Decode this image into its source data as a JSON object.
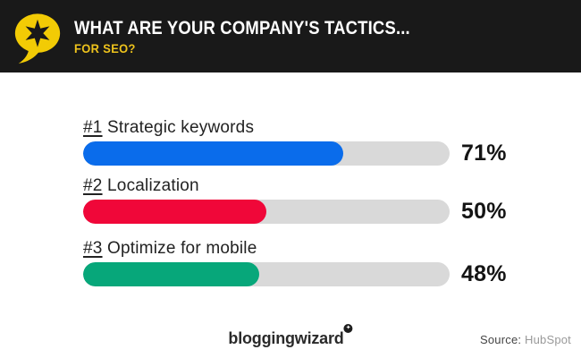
{
  "header": {
    "title": "WHAT ARE YOUR COMPANY'S TACTICS...",
    "subtitle": "FOR SEO?",
    "background_color": "#191919",
    "accent_color": "#eec31c",
    "logo_color": "#f2cb05"
  },
  "chart_data": {
    "type": "bar",
    "orientation": "horizontal",
    "title": "What are your company's tactics for SEO?",
    "ranks": [
      "#1",
      "#2",
      "#3"
    ],
    "categories": [
      "Strategic keywords",
      "Localization",
      "Optimize for mobile"
    ],
    "values": [
      71,
      50,
      48
    ],
    "value_labels": [
      "71%",
      "50%",
      "48%"
    ],
    "bar_colors": [
      "#0a6ceb",
      "#f00739",
      "#07a77a"
    ],
    "track_color": "#d9d9d9",
    "xlim": [
      0,
      100
    ],
    "grid": false,
    "legend": false
  },
  "footer": {
    "brand": "bloggingwizard",
    "badge_icon": "✦",
    "source_label": "Source:",
    "source_value": "HubSpot"
  }
}
